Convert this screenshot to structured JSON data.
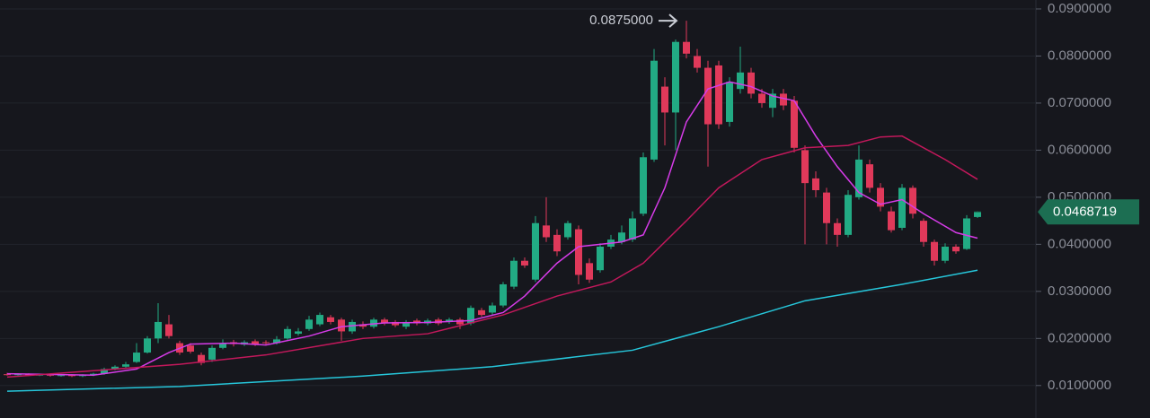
{
  "chart_data": {
    "type": "candlestick",
    "candles": {
      "up_color": "#22ab84",
      "down_color": "#e0395a",
      "open": [
        0.0124,
        0.0123,
        0.0124,
        0.0122,
        0.0123,
        0.0121,
        0.0122,
        0.012,
        0.0122,
        0.0125,
        0.0135,
        0.014,
        0.015,
        0.017,
        0.02,
        0.023,
        0.019,
        0.0185,
        0.0165,
        0.0155,
        0.018,
        0.0192,
        0.0187,
        0.0194,
        0.0192,
        0.019,
        0.02,
        0.021,
        0.022,
        0.023,
        0.0245,
        0.024,
        0.0215,
        0.023,
        0.0225,
        0.024,
        0.0235,
        0.0225,
        0.0238,
        0.0232,
        0.024,
        0.0235,
        0.024,
        0.0232,
        0.026,
        0.0255,
        0.027,
        0.031,
        0.0365,
        0.0325,
        0.044,
        0.042,
        0.0415,
        0.0432,
        0.036,
        0.0345,
        0.0395,
        0.0405,
        0.041,
        0.0465,
        0.058,
        0.0735,
        0.068,
        0.083,
        0.08,
        0.0775,
        0.078,
        0.066,
        0.073,
        0.0765,
        0.072,
        0.069,
        0.072,
        0.0705,
        0.06,
        0.054,
        0.051,
        0.0445,
        0.042,
        0.05,
        0.057,
        0.052,
        0.047,
        0.0435,
        0.052,
        0.045,
        0.0405,
        0.0365,
        0.0395,
        0.039,
        0.0458
      ],
      "high": [
        0.0127,
        0.0126,
        0.0126,
        0.0125,
        0.0125,
        0.0124,
        0.0124,
        0.0124,
        0.0127,
        0.0138,
        0.0143,
        0.015,
        0.019,
        0.0205,
        0.0275,
        0.025,
        0.0195,
        0.019,
        0.017,
        0.0185,
        0.0198,
        0.0197,
        0.0196,
        0.0198,
        0.0196,
        0.0205,
        0.0226,
        0.0222,
        0.0248,
        0.0255,
        0.025,
        0.0244,
        0.024,
        0.0236,
        0.0244,
        0.0244,
        0.0239,
        0.0239,
        0.0242,
        0.0242,
        0.0244,
        0.0244,
        0.0244,
        0.027,
        0.0265,
        0.0276,
        0.032,
        0.0372,
        0.0372,
        0.046,
        0.05,
        0.0432,
        0.045,
        0.044,
        0.037,
        0.0402,
        0.042,
        0.044,
        0.047,
        0.0595,
        0.0815,
        0.0755,
        0.0835,
        0.0875,
        0.0815,
        0.079,
        0.079,
        0.0755,
        0.082,
        0.0775,
        0.073,
        0.073,
        0.073,
        0.0715,
        0.061,
        0.0555,
        0.052,
        0.0455,
        0.0515,
        0.061,
        0.058,
        0.053,
        0.048,
        0.0528,
        0.0525,
        0.0455,
        0.041,
        0.0402,
        0.04,
        0.0462,
        0.047
      ],
      "low": [
        0.0121,
        0.0121,
        0.012,
        0.012,
        0.0119,
        0.0119,
        0.0118,
        0.0118,
        0.012,
        0.0123,
        0.0132,
        0.0137,
        0.0148,
        0.0168,
        0.019,
        0.02,
        0.0165,
        0.0168,
        0.0143,
        0.015,
        0.0177,
        0.0183,
        0.0184,
        0.0184,
        0.0186,
        0.0187,
        0.0197,
        0.0206,
        0.0216,
        0.0226,
        0.023,
        0.0195,
        0.021,
        0.022,
        0.0221,
        0.0228,
        0.0224,
        0.022,
        0.0228,
        0.0228,
        0.0228,
        0.0231,
        0.022,
        0.0228,
        0.0246,
        0.025,
        0.0266,
        0.0305,
        0.035,
        0.032,
        0.0405,
        0.0375,
        0.041,
        0.0315,
        0.0318,
        0.034,
        0.039,
        0.04,
        0.0405,
        0.046,
        0.0575,
        0.061,
        0.06,
        0.0795,
        0.0765,
        0.0565,
        0.0645,
        0.065,
        0.072,
        0.071,
        0.069,
        0.067,
        0.0685,
        0.0595,
        0.04,
        0.05,
        0.04,
        0.0395,
        0.0415,
        0.0495,
        0.051,
        0.047,
        0.0425,
        0.043,
        0.0455,
        0.0395,
        0.0355,
        0.036,
        0.038,
        0.0388,
        0.0456
      ],
      "close": [
        0.0123,
        0.0124,
        0.0122,
        0.0123,
        0.0121,
        0.0122,
        0.012,
        0.0122,
        0.0125,
        0.0135,
        0.014,
        0.0145,
        0.017,
        0.02,
        0.0235,
        0.0205,
        0.017,
        0.0172,
        0.0148,
        0.018,
        0.019,
        0.0188,
        0.0192,
        0.0188,
        0.019,
        0.0198,
        0.022,
        0.0215,
        0.024,
        0.025,
        0.0235,
        0.0215,
        0.0235,
        0.0225,
        0.024,
        0.0232,
        0.0228,
        0.0235,
        0.0232,
        0.0238,
        0.0232,
        0.024,
        0.023,
        0.0265,
        0.025,
        0.027,
        0.0315,
        0.0365,
        0.0355,
        0.0445,
        0.0415,
        0.0385,
        0.0445,
        0.0335,
        0.0325,
        0.0395,
        0.041,
        0.0425,
        0.0455,
        0.0585,
        0.079,
        0.068,
        0.083,
        0.0805,
        0.0775,
        0.0655,
        0.0655,
        0.0745,
        0.0765,
        0.072,
        0.07,
        0.072,
        0.0695,
        0.0605,
        0.053,
        0.0515,
        0.0445,
        0.042,
        0.0505,
        0.058,
        0.052,
        0.048,
        0.043,
        0.052,
        0.0465,
        0.0405,
        0.0365,
        0.0395,
        0.0385,
        0.0455,
        0.0468719
      ]
    },
    "series": [
      {
        "color": "#d63be8",
        "x": [
          0,
          8,
          12,
          15,
          17,
          21,
          24,
          28,
          31,
          35,
          39,
          43,
          46,
          48,
          51,
          53,
          57,
          59,
          61,
          63,
          65,
          67,
          69,
          71,
          73,
          75,
          77,
          79,
          81,
          83,
          85,
          88,
          90
        ],
        "values": [
          0.0125,
          0.0122,
          0.0135,
          0.017,
          0.0188,
          0.019,
          0.0186,
          0.0205,
          0.0225,
          0.0233,
          0.0234,
          0.0238,
          0.0255,
          0.029,
          0.036,
          0.0395,
          0.0405,
          0.042,
          0.052,
          0.066,
          0.073,
          0.0745,
          0.0735,
          0.0715,
          0.0705,
          0.063,
          0.0565,
          0.051,
          0.0485,
          0.0495,
          0.0465,
          0.0425,
          0.0413
        ]
      },
      {
        "color": "#c2185b",
        "x": [
          0,
          16,
          24,
          33,
          39,
          46,
          51,
          56,
          59,
          63,
          66,
          70,
          74,
          78,
          81,
          83,
          87,
          90
        ],
        "values": [
          0.0118,
          0.0145,
          0.0165,
          0.02,
          0.021,
          0.025,
          0.029,
          0.032,
          0.036,
          0.045,
          0.052,
          0.058,
          0.0605,
          0.061,
          0.0628,
          0.063,
          0.058,
          0.0538
        ]
      },
      {
        "color": "#26c6da",
        "x": [
          0,
          16,
          33,
          45,
          58,
          66,
          74,
          83,
          90
        ],
        "values": [
          0.0088,
          0.0098,
          0.012,
          0.014,
          0.0175,
          0.0225,
          0.028,
          0.0315,
          0.0345
        ]
      }
    ],
    "ylim": [
      0.0031,
      0.0919
    ],
    "yticks": [
      {
        "value": 0.01,
        "label": "0.0100000"
      },
      {
        "value": 0.02,
        "label": "0.0200000"
      },
      {
        "value": 0.03,
        "label": "0.0300000"
      },
      {
        "value": 0.04,
        "label": "0.0400000"
      },
      {
        "value": 0.05,
        "label": "0.0500000"
      },
      {
        "value": 0.06,
        "label": "0.0600000"
      },
      {
        "value": 0.07,
        "label": "0.0700000"
      },
      {
        "value": 0.08,
        "label": "0.0800000"
      },
      {
        "value": 0.09,
        "label": "0.0900000"
      }
    ],
    "grid": true,
    "high_annotation": {
      "value": 0.0875,
      "label": "0.0875000"
    },
    "last_price": 0.0468719,
    "last_price_color": "#1c6e52"
  }
}
